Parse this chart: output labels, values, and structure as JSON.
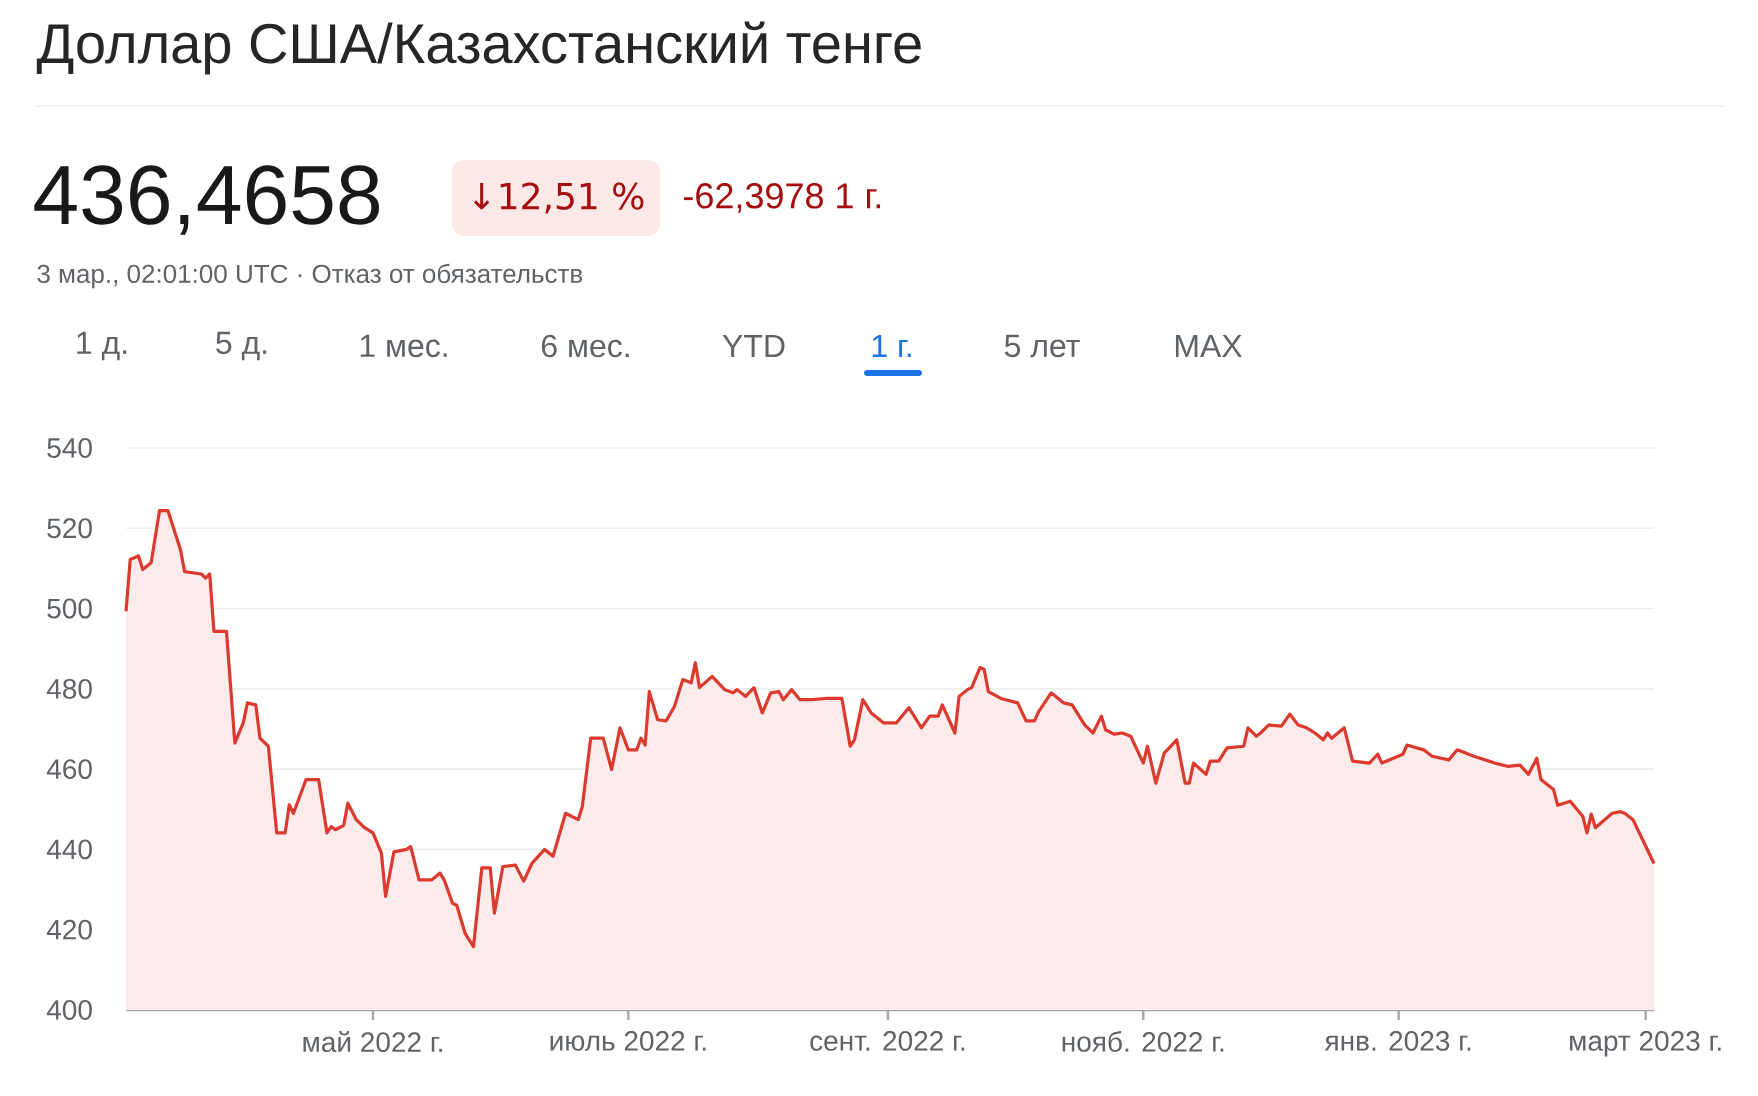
{
  "chart_data": {
    "type": "area",
    "title": "Доллар США/Казахстанский тенге",
    "subtitle": "436,4658",
    "annotations": [
      "↓12,51 %",
      "-62,3978 1 г.",
      "3 мар., 02:01:00 UTC · Отказ от обязательств",
      "1 д.",
      "5 д.",
      "1 мес.",
      "6 мес.",
      "YTD",
      "1 г.",
      "5 лет",
      "MAX"
    ],
    "color": "#dc3a2e",
    "x": [
      "2022-03-03",
      "2022-03-04",
      "2022-03-06",
      "2022-03-07",
      "2022-03-09",
      "2022-03-11",
      "2022-03-13",
      "2022-03-16",
      "2022-03-17",
      "2022-03-21",
      "2022-03-22",
      "2022-03-23",
      "2022-03-24",
      "2022-03-27",
      "2022-03-29",
      "2022-03-31",
      "2022-04-01",
      "2022-04-03",
      "2022-04-04",
      "2022-04-06",
      "2022-04-08",
      "2022-04-10",
      "2022-04-11",
      "2022-04-12",
      "2022-04-15",
      "2022-04-18",
      "2022-04-20",
      "2022-04-21",
      "2022-04-22",
      "2022-04-24",
      "2022-04-25",
      "2022-04-27",
      "2022-04-29",
      "2022-05-01",
      "2022-05-03",
      "2022-05-04",
      "2022-05-06",
      "2022-05-09",
      "2022-05-10",
      "2022-05-12",
      "2022-05-15",
      "2022-05-17",
      "2022-05-18",
      "2022-05-20",
      "2022-05-21",
      "2022-05-23",
      "2022-05-25",
      "2022-05-27",
      "2022-05-29",
      "2022-05-30",
      "2022-06-01",
      "2022-06-04",
      "2022-06-06",
      "2022-06-08",
      "2022-06-11",
      "2022-06-13",
      "2022-06-16",
      "2022-06-19",
      "2022-06-20",
      "2022-06-22",
      "2022-06-25",
      "2022-06-27",
      "2022-06-29",
      "2022-07-01",
      "2022-07-03",
      "2022-07-04",
      "2022-07-05",
      "2022-07-06",
      "2022-07-08",
      "2022-07-10",
      "2022-07-12",
      "2022-07-14",
      "2022-07-16",
      "2022-07-17",
      "2022-07-18",
      "2022-07-21",
      "2022-07-24",
      "2022-07-26",
      "2022-07-27",
      "2022-07-29",
      "2022-07-31",
      "2022-08-02",
      "2022-08-04",
      "2022-08-06",
      "2022-08-07",
      "2022-08-09",
      "2022-08-11",
      "2022-08-14",
      "2022-08-17",
      "2022-08-21",
      "2022-08-23",
      "2022-08-24",
      "2022-08-26",
      "2022-08-28",
      "2022-08-31",
      "2022-09-03",
      "2022-09-06",
      "2022-09-09",
      "2022-09-11",
      "2022-09-13",
      "2022-09-14",
      "2022-09-17",
      "2022-09-18",
      "2022-09-20",
      "2022-09-21",
      "2022-09-23",
      "2022-09-24",
      "2022-09-25",
      "2022-09-28",
      "2022-10-02",
      "2022-10-04",
      "2022-10-06",
      "2022-10-07",
      "2022-10-10",
      "2022-10-13",
      "2022-10-15",
      "2022-10-18",
      "2022-10-20",
      "2022-10-22",
      "2022-10-23",
      "2022-10-25",
      "2022-10-27",
      "2022-10-29",
      "2022-11-01",
      "2022-11-02",
      "2022-11-04",
      "2022-11-06",
      "2022-11-09",
      "2022-11-11",
      "2022-11-12",
      "2022-11-13",
      "2022-11-16",
      "2022-11-17",
      "2022-11-19",
      "2022-11-21",
      "2022-11-25",
      "2022-11-26",
      "2022-11-28",
      "2022-11-29",
      "2022-12-01",
      "2022-12-04",
      "2022-12-06",
      "2022-12-08",
      "2022-12-10",
      "2022-12-12",
      "2022-12-14",
      "2022-12-15",
      "2022-12-16",
      "2022-12-19",
      "2022-12-21",
      "2022-12-25",
      "2022-12-27",
      "2022-12-28",
      "2023-01-02",
      "2023-01-03",
      "2023-01-07",
      "2023-01-09",
      "2023-01-13",
      "2023-01-15",
      "2023-01-19",
      "2023-01-24",
      "2023-01-27",
      "2023-01-30",
      "2023-02-01",
      "2023-02-03",
      "2023-02-04",
      "2023-02-07",
      "2023-02-08",
      "2023-02-11",
      "2023-02-14",
      "2023-02-15",
      "2023-02-16",
      "2023-02-17",
      "2023-02-21",
      "2023-02-23",
      "2023-02-24",
      "2023-02-26",
      "2023-03-03"
    ],
    "values": [
      499.3,
      512.2,
      513.1,
      509.7,
      511.4,
      524.4,
      524.4,
      514.7,
      509.2,
      508.6,
      507.6,
      508.6,
      494.3,
      494.3,
      466.5,
      471.5,
      476.5,
      476,
      467.7,
      465.7,
      444.1,
      444.1,
      451.1,
      449,
      457.4,
      457.4,
      444.1,
      445.7,
      444.9,
      446,
      451.5,
      447.4,
      445.4,
      444.1,
      439.1,
      428.3,
      439.4,
      440,
      440.7,
      432.4,
      432.4,
      434.1,
      432.4,
      426.6,
      426.1,
      419.1,
      415.8,
      435.4,
      435.4,
      424.1,
      435.7,
      436.1,
      432.1,
      436.6,
      440,
      438.3,
      449,
      447.4,
      450.7,
      467.7,
      467.7,
      459.9,
      470.3,
      464.8,
      464.8,
      467.7,
      466,
      479.3,
      472.3,
      472,
      475.6,
      482.3,
      481.5,
      486.5,
      480.3,
      483.1,
      479.8,
      479,
      479.8,
      478.1,
      480.3,
      474,
      479,
      479.3,
      477.3,
      479.8,
      477.3,
      477.3,
      477.6,
      477.6,
      465.7,
      467.3,
      477.3,
      474,
      471.5,
      471.5,
      475.3,
      470.3,
      473.2,
      473.2,
      476,
      469,
      478.1,
      479.8,
      480.3,
      485.3,
      484.8,
      479.3,
      477.6,
      476.5,
      472,
      472,
      474.3,
      479,
      476.5,
      476,
      471,
      469,
      473.2,
      469.8,
      468.7,
      469,
      468.2,
      461.5,
      465.7,
      456.5,
      464,
      467.3,
      456.5,
      456.5,
      461.5,
      458.7,
      462,
      462,
      465.3,
      465.7,
      470.3,
      468.2,
      469,
      471,
      470.7,
      473.7,
      471,
      470.3,
      469,
      467.3,
      469,
      467.7,
      470.3,
      462,
      461.5,
      463.7,
      461.5,
      463.7,
      466,
      464.8,
      463.2,
      462.3,
      464.8,
      463.2,
      461.5,
      460.7,
      461,
      458.7,
      462.7,
      457.4,
      454.9,
      451,
      452,
      448.2,
      444.1,
      448.8,
      445.4,
      449,
      449.4,
      449,
      447.4,
      436.5
    ],
    "xlim": [
      "2022-03-03",
      "2023-03-03"
    ],
    "xticks": [
      {
        "value": "2022-05-01",
        "label": "май 2022 г."
      },
      {
        "value": "2022-07-01",
        "label": "июль 2022 г."
      },
      {
        "value": "2022-09-01",
        "label": "сент. 2022 г."
      },
      {
        "value": "2022-11-01",
        "label": "нояб. 2022 г."
      },
      {
        "value": "2023-01-01",
        "label": "янв. 2023 г."
      },
      {
        "value": "2023-03-01",
        "label": "март 2023 г."
      }
    ],
    "ylim": [
      400,
      540
    ],
    "yticks": [
      400,
      420,
      440,
      460,
      480,
      500,
      520,
      540
    ],
    "grid": "y"
  }
}
